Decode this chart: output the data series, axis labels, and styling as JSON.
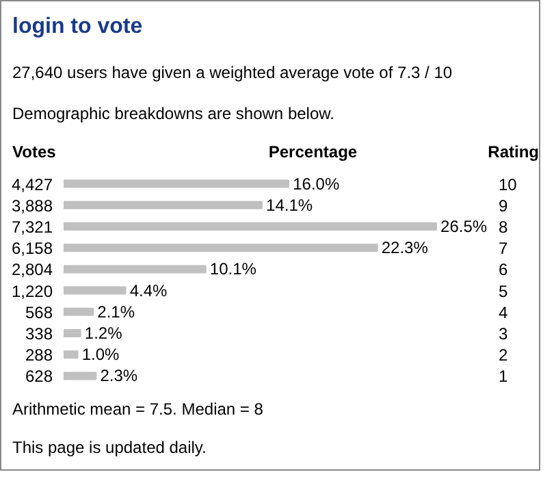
{
  "chart_data": {
    "type": "bar",
    "orientation": "horizontal",
    "title": "login to vote",
    "subtitle": "27,640 users have given a weighted average vote of 7.3 / 10",
    "xlabel": "Percentage",
    "ylabel": "Votes",
    "y2label": "Rating",
    "categories": [
      "10",
      "9",
      "8",
      "7",
      "6",
      "5",
      "4",
      "3",
      "2",
      "1"
    ],
    "values": [
      16.0,
      14.1,
      26.5,
      22.3,
      10.1,
      4.4,
      2.1,
      1.2,
      1.0,
      2.3
    ],
    "value_labels": [
      "16.0%",
      "14.1%",
      "26.5%",
      "22.3%",
      "10.1%",
      "4.4%",
      "2.1%",
      "1.2%",
      "1.0%",
      "2.3%"
    ],
    "color": "#c0c0c0",
    "tick_labels": "y",
    "grid": false,
    "annotations": [
      "Demographic breakdowns are shown below.",
      "4,427",
      "3,888",
      "7,321",
      "6,158",
      "2,804",
      "1,220",
      "568",
      "338",
      "288",
      "628",
      "Arithmetic mean = 7.5.  Median = 8",
      "This page is updated daily."
    ]
  }
}
